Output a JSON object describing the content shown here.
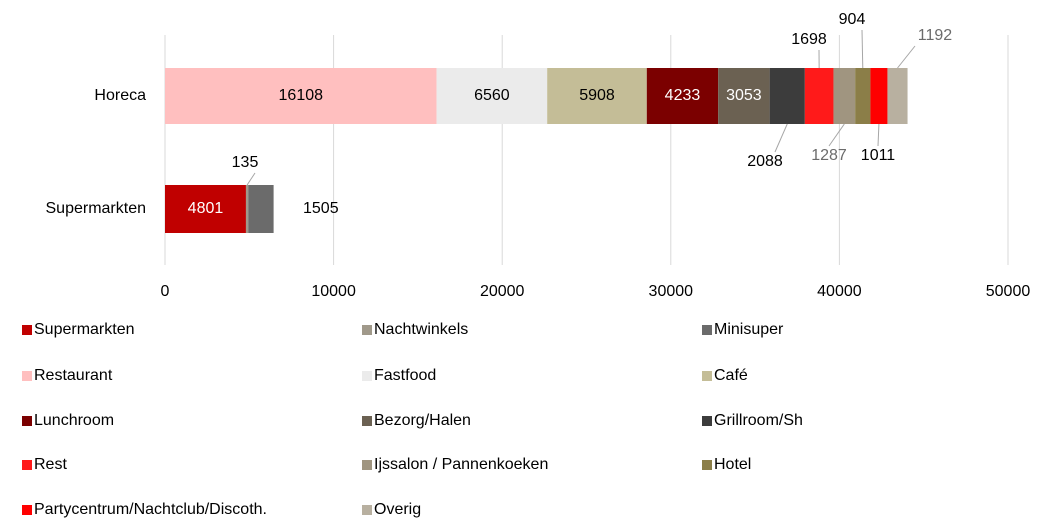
{
  "chart_data": {
    "type": "stacked_barh",
    "categories": [
      "Horeca",
      "Supermarkten"
    ],
    "series": [
      {
        "name": "Supermarkten",
        "color": "#c00000",
        "values": [
          null,
          4801
        ]
      },
      {
        "name": "Nachtwinkels",
        "color": "#a0998a",
        "values": [
          null,
          135
        ]
      },
      {
        "name": "Minisuper",
        "color": "#6b6b6b",
        "values": [
          null,
          1505
        ]
      },
      {
        "name": "Restaurant",
        "color": "#ffbfbf",
        "values": [
          16108,
          null
        ]
      },
      {
        "name": "Fastfood",
        "color": "#ebebeb",
        "values": [
          6560,
          null
        ]
      },
      {
        "name": "Café",
        "color": "#c4bd97",
        "values": [
          5908,
          null
        ]
      },
      {
        "name": "Lunchroom",
        "color": "#7b0000",
        "values": [
          4233,
          null
        ]
      },
      {
        "name": "Bezorg/Halen",
        "color": "#6b6152",
        "values": [
          3053,
          null
        ]
      },
      {
        "name": "Grillroom/Sh",
        "color": "#3c3c3c",
        "values": [
          2088,
          null
        ]
      },
      {
        "name": "Rest",
        "color": "#ff1a1a",
        "values": [
          1698,
          null
        ]
      },
      {
        "name": "Ijssalon / Pannenkoeken",
        "color": "#a09580",
        "values": [
          1287,
          null
        ]
      },
      {
        "name": "Hotel",
        "color": "#8b7e48",
        "values": [
          904,
          null
        ]
      },
      {
        "name": "Partycentrum/Nachtclub/Discoth.",
        "color": "#ff0000",
        "values": [
          1011,
          null
        ]
      },
      {
        "name": "Overig",
        "color": "#b8b0a0",
        "values": [
          1192,
          null
        ]
      }
    ],
    "xlim": [
      0,
      50000
    ],
    "xticks": [
      0,
      10000,
      20000,
      30000,
      40000,
      50000
    ],
    "grid": true,
    "legend": "bottom"
  }
}
